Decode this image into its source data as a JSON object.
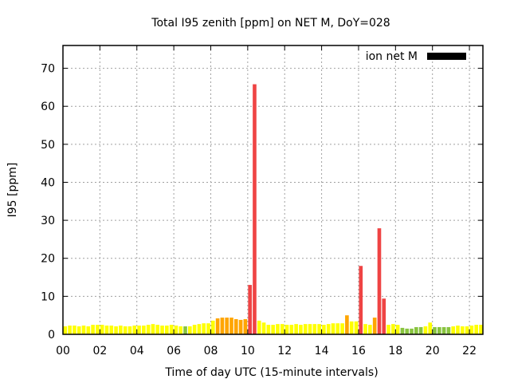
{
  "chart_data": {
    "type": "bar",
    "title": "Total I95 zenith [ppm] on NET M, DoY=028",
    "xlabel": "Time of day UTC (15-minute intervals)",
    "ylabel": "I95 [ppm]",
    "xlim": [
      0,
      22.73
    ],
    "ylim": [
      0,
      76
    ],
    "grid": true,
    "legend": {
      "label": "ion net M",
      "placement": "top-right",
      "color": "#000000"
    },
    "xticks": [
      0,
      2,
      4,
      6,
      8,
      10,
      12,
      14,
      16,
      18,
      20,
      22
    ],
    "xtick_labels": [
      "00",
      "02",
      "04",
      "06",
      "08",
      "10",
      "12",
      "14",
      "16",
      "18",
      "20",
      "22"
    ],
    "yticks": [
      0,
      10,
      20,
      30,
      40,
      50,
      60,
      70
    ],
    "ytick_labels": [
      "0",
      "10",
      "20",
      "30",
      "40",
      "50",
      "60",
      "70"
    ],
    "interval_hours": 0.25,
    "palette": {
      "Y": "#ffff00",
      "G": "#88c43f",
      "O": "#ffa500",
      "R": "#ef4444"
    },
    "values": [
      2.1,
      2.3,
      2.3,
      2.1,
      2.3,
      2.1,
      2.5,
      2.5,
      2.5,
      2.3,
      2.3,
      2.1,
      2.3,
      2.1,
      2.1,
      2.3,
      2.3,
      2.3,
      2.5,
      2.7,
      2.5,
      2.3,
      2.3,
      2.5,
      2.3,
      2.1,
      2.1,
      2.1,
      2.5,
      2.7,
      2.9,
      2.9,
      3.6,
      4.2,
      4.4,
      4.4,
      4.4,
      4.0,
      3.8,
      4.0,
      13.0,
      65.8,
      3.6,
      3.1,
      2.5,
      2.5,
      2.7,
      2.7,
      2.5,
      2.5,
      2.7,
      2.5,
      2.7,
      2.7,
      2.7,
      2.7,
      2.5,
      2.7,
      2.9,
      2.9,
      2.9,
      5.0,
      3.4,
      3.4,
      18.0,
      2.7,
      2.5,
      4.4,
      27.9,
      9.4,
      2.5,
      2.7,
      2.5,
      1.7,
      1.5,
      1.5,
      1.9,
      1.9,
      2.1,
      3.1,
      1.9,
      1.9,
      1.9,
      1.9,
      2.1,
      2.3,
      2.1,
      2.1,
      2.3,
      2.5,
      2.5
    ],
    "colors": [
      "Y",
      "Y",
      "Y",
      "Y",
      "Y",
      "Y",
      "Y",
      "Y",
      "Y",
      "Y",
      "Y",
      "Y",
      "Y",
      "Y",
      "Y",
      "Y",
      "Y",
      "Y",
      "Y",
      "Y",
      "Y",
      "Y",
      "Y",
      "Y",
      "Y",
      "Y",
      "G",
      "Y",
      "Y",
      "Y",
      "Y",
      "Y",
      "Y",
      "O",
      "O",
      "O",
      "O",
      "O",
      "O",
      "O",
      "R",
      "R",
      "Y",
      "Y",
      "Y",
      "Y",
      "Y",
      "Y",
      "Y",
      "Y",
      "Y",
      "Y",
      "Y",
      "Y",
      "Y",
      "Y",
      "Y",
      "Y",
      "Y",
      "Y",
      "Y",
      "O",
      "Y",
      "Y",
      "R",
      "Y",
      "Y",
      "O",
      "R",
      "R",
      "Y",
      "Y",
      "Y",
      "G",
      "G",
      "G",
      "G",
      "G",
      "Y",
      "Y",
      "G",
      "G",
      "G",
      "G",
      "Y",
      "Y",
      "Y",
      "Y",
      "Y",
      "Y",
      "Y"
    ]
  }
}
